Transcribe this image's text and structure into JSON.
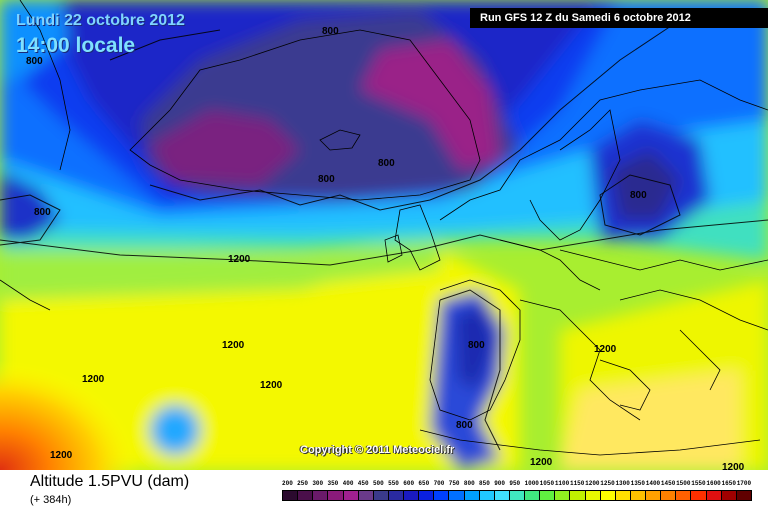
{
  "header": {
    "date": "Lundi 22 octobre 2012",
    "time": "14:00 locale",
    "run": "Run GFS 12 Z du Samedi 6 octobre 2012"
  },
  "copyright": "Copyright © 2011 Meteociel.fr",
  "footer": {
    "parameter": "Altitude 1.5PVU (dam)",
    "lead_time": "(+ 384h)"
  },
  "contour_labels": [
    "800",
    "800",
    "800",
    "800",
    "800",
    "800",
    "800",
    "800",
    "1200",
    "1200",
    "1200",
    "1200",
    "1200",
    "1200",
    "1200",
    "1200"
  ],
  "scale": {
    "labels": [
      "200",
      "250",
      "300",
      "350",
      "400",
      "450",
      "500",
      "550",
      "600",
      "650",
      "700",
      "750",
      "800",
      "850",
      "900",
      "950",
      "1000",
      "1050",
      "1100",
      "1150",
      "1200",
      "1250",
      "1300",
      "1350",
      "1400",
      "1450",
      "1500",
      "1550",
      "1600",
      "1650",
      "1700"
    ],
    "colors": [
      "#2b0a2e",
      "#4a0f4a",
      "#6a1a6a",
      "#8a1a7a",
      "#a02090",
      "#6a3a8a",
      "#3a3a8a",
      "#2a2aa0",
      "#1a1ac0",
      "#0a20e0",
      "#0040ff",
      "#0070ff",
      "#00a0ff",
      "#20c8ff",
      "#40e0ff",
      "#40e8c0",
      "#40e880",
      "#60f040",
      "#90f020",
      "#c0f000",
      "#e8f800",
      "#ffff00",
      "#ffe000",
      "#ffc000",
      "#ffa000",
      "#ff8000",
      "#ff6000",
      "#ff3000",
      "#e01010",
      "#a00000",
      "#600000"
    ]
  }
}
